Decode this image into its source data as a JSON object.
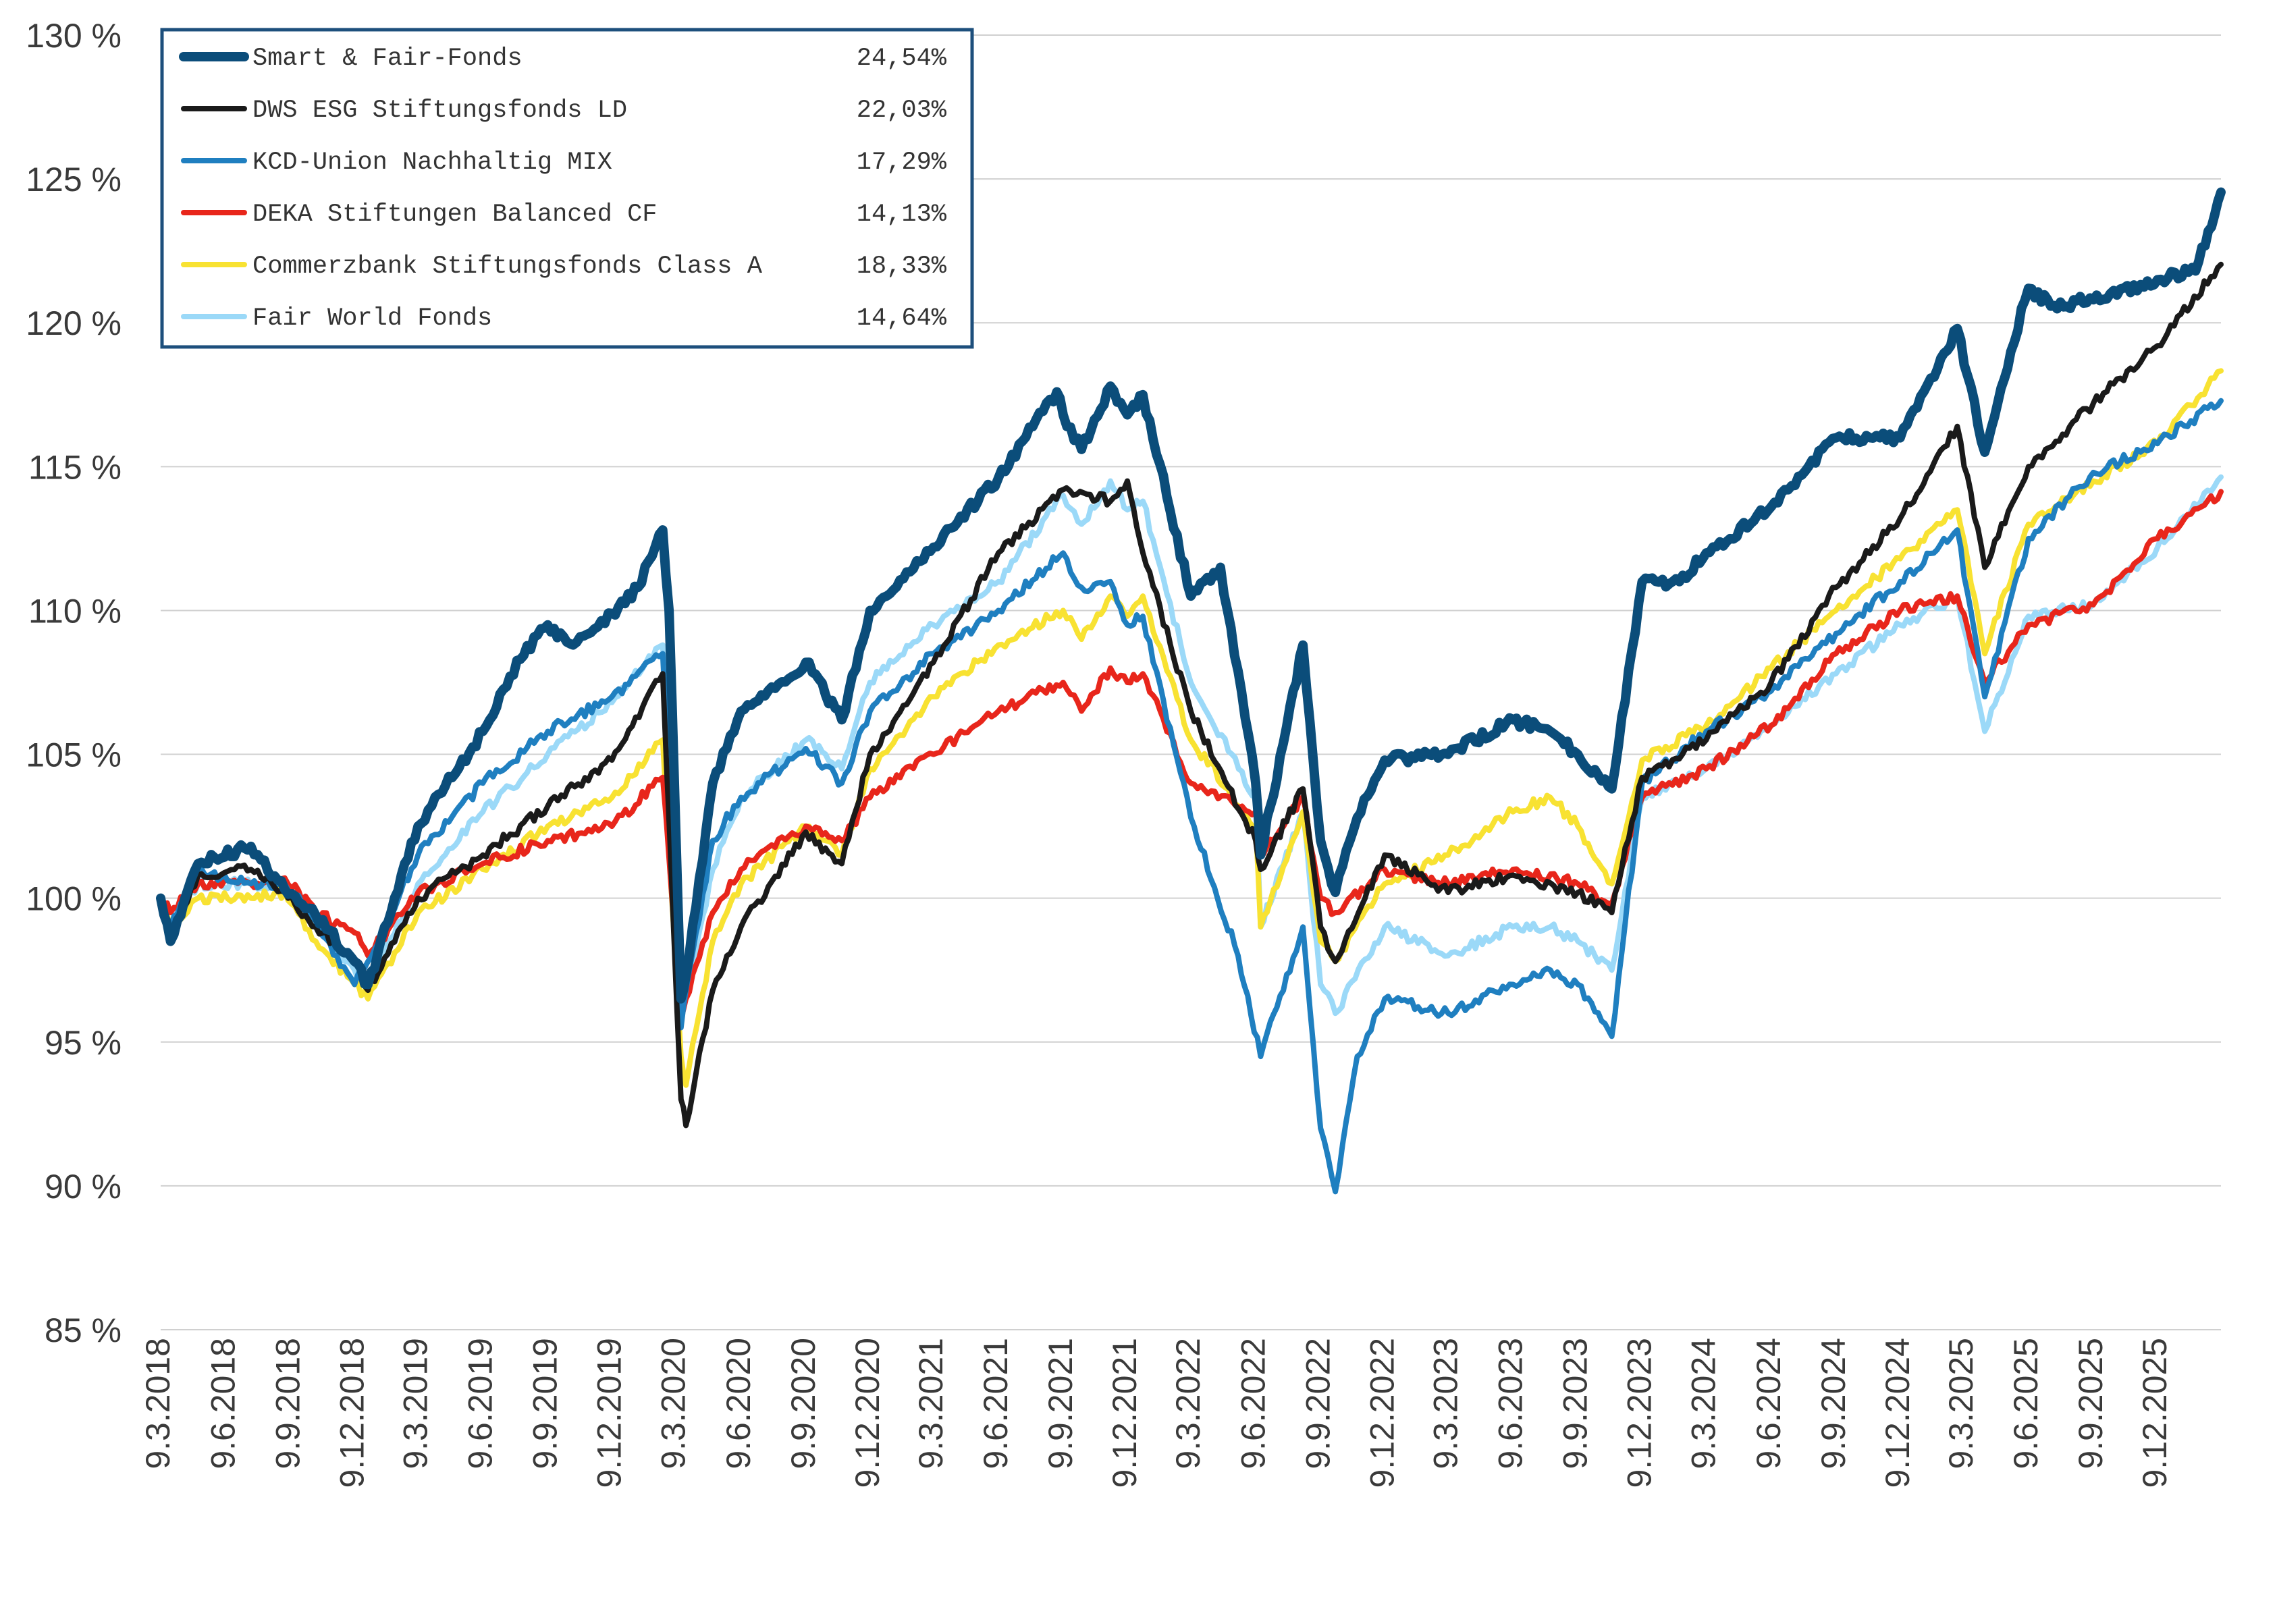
{
  "chart_data": {
    "type": "line",
    "title": "",
    "xlabel": "",
    "ylabel": "",
    "ylim": [
      85,
      130
    ],
    "y_ticks": [
      85,
      90,
      95,
      100,
      105,
      110,
      115,
      120,
      125,
      130
    ],
    "y_tick_labels": [
      "85 %",
      "90 %",
      "95 %",
      "100 %",
      "105 %",
      "110 %",
      "115 %",
      "120 %",
      "125 %",
      "130 %"
    ],
    "x_ticks": [
      "2018-03-09",
      "2018-06-09",
      "2018-09-09",
      "2018-12-09",
      "2019-03-09",
      "2019-06-09",
      "2019-09-09",
      "2019-12-09",
      "2020-03-09",
      "2020-06-09",
      "2020-09-09",
      "2020-12-09",
      "2021-03-09",
      "2021-06-09",
      "2021-09-09",
      "2021-12-09",
      "2022-03-09",
      "2022-06-09",
      "2022-09-09",
      "2022-12-09",
      "2023-03-09",
      "2023-06-09",
      "2023-09-09",
      "2023-12-09",
      "2024-03-09",
      "2024-06-09",
      "2024-09-09",
      "2024-12-09",
      "2025-03-09",
      "2025-06-09",
      "2025-09-09",
      "2025-12-09"
    ],
    "x_tick_labels": [
      "9.3.2018",
      "9.6.2018",
      "9.9.2018",
      "9.12.2018",
      "9.3.2019",
      "9.6.2019",
      "9.9.2019",
      "9.12.2019",
      "9.3.2020",
      "9.6.2020",
      "9.9.2020",
      "9.12.2020",
      "9.3.2021",
      "9.6.2021",
      "9.9.2021",
      "9.12.2021",
      "9.3.2022",
      "9.6.2022",
      "9.9.2022",
      "9.12.2022",
      "9.3.2023",
      "9.6.2023",
      "9.9.2023",
      "9.12.2023",
      "9.3.2024",
      "9.6.2024",
      "9.9.2024",
      "9.12.2024",
      "9.3.2025",
      "9.6.2025",
      "9.9.2025",
      "9.12.2025"
    ],
    "x_range": [
      "2018-03-09",
      "2026-03-09"
    ],
    "grid": true,
    "legend_position": "top-left",
    "series": [
      {
        "name": "Smart & Fair-Fonds",
        "legend_value": "24,54%",
        "color": "#0b4d7a",
        "x": [
          "2018-03-09",
          "2018-03-23",
          "2018-05-01",
          "2018-07-15",
          "2018-09-01",
          "2018-10-15",
          "2018-12-09",
          "2018-12-28",
          "2019-03-09",
          "2019-06-09",
          "2019-08-01",
          "2019-09-09",
          "2019-10-15",
          "2019-12-09",
          "2020-01-15",
          "2020-02-19",
          "2020-02-28",
          "2020-03-16",
          "2020-03-23",
          "2020-04-30",
          "2020-06-09",
          "2020-09-09",
          "2020-10-30",
          "2020-12-09",
          "2021-03-09",
          "2021-06-09",
          "2021-08-31",
          "2021-09-09",
          "2021-10-05",
          "2021-11-15",
          "2021-12-09",
          "2021-12-31",
          "2022-03-09",
          "2022-04-20",
          "2022-06-09",
          "2022-06-16",
          "2022-08-15",
          "2022-09-09",
          "2022-09-30",
          "2022-10-31",
          "2022-12-09",
          "2023-03-09",
          "2023-06-09",
          "2023-08-01",
          "2023-09-09",
          "2023-10-27",
          "2023-12-09",
          "2024-01-31",
          "2024-03-09",
          "2024-06-09",
          "2024-09-09",
          "2024-12-09",
          "2025-01-31",
          "2025-02-28",
          "2025-04-08",
          "2025-05-15",
          "2025-06-09",
          "2025-07-15",
          "2025-09-09",
          "2025-12-09",
          "2026-02-01",
          "2026-03-09"
        ],
        "y": [
          100.0,
          98.5,
          101.2,
          101.8,
          100.3,
          99.4,
          97.8,
          97.0,
          102.5,
          105.8,
          108.3,
          109.5,
          108.8,
          109.9,
          110.8,
          112.8,
          110.0,
          96.5,
          97.3,
          104.0,
          106.5,
          108.2,
          106.2,
          110.0,
          112.2,
          114.6,
          117.6,
          116.8,
          115.6,
          117.8,
          116.8,
          117.5,
          110.5,
          111.5,
          104.0,
          101.5,
          108.8,
          102.0,
          100.2,
          102.8,
          104.8,
          105.0,
          106.2,
          105.8,
          105.0,
          103.8,
          111.0,
          111.0,
          112.0,
          113.6,
          116.0,
          116.0,
          118.4,
          119.8,
          115.5,
          119.0,
          121.2,
          120.6,
          120.8,
          121.5,
          121.8,
          124.54
        ]
      },
      {
        "name": "DWS ESG Stiftungsfonds LD",
        "legend_value": "22,03%",
        "color": "#1a1a1a",
        "x": [
          "2018-03-09",
          "2018-03-23",
          "2018-05-01",
          "2018-07-15",
          "2018-09-01",
          "2018-10-15",
          "2018-12-09",
          "2018-12-28",
          "2019-03-09",
          "2019-06-09",
          "2019-09-09",
          "2019-12-09",
          "2020-02-19",
          "2020-03-16",
          "2020-03-23",
          "2020-04-30",
          "2020-06-09",
          "2020-09-09",
          "2020-10-30",
          "2020-12-09",
          "2021-03-09",
          "2021-06-09",
          "2021-09-09",
          "2021-11-15",
          "2021-12-09",
          "2021-12-31",
          "2022-03-09",
          "2022-06-09",
          "2022-06-16",
          "2022-08-15",
          "2022-09-09",
          "2022-09-30",
          "2022-12-09",
          "2023-03-09",
          "2023-06-09",
          "2023-09-09",
          "2023-10-27",
          "2023-12-09",
          "2024-03-09",
          "2024-06-09",
          "2024-09-09",
          "2024-12-09",
          "2025-02-28",
          "2025-04-08",
          "2025-06-09",
          "2025-09-09",
          "2025-12-09",
          "2026-03-09"
        ],
        "y": [
          100.0,
          98.5,
          100.8,
          101.0,
          100.2,
          99.0,
          97.8,
          96.8,
          100.0,
          101.5,
          103.2,
          104.8,
          107.8,
          93.0,
          92.1,
          96.8,
          99.0,
          102.3,
          101.2,
          105.0,
          108.2,
          112.0,
          114.2,
          113.8,
          114.5,
          112.0,
          106.5,
          102.0,
          101.0,
          103.8,
          99.0,
          97.8,
          101.5,
          100.2,
          100.8,
          100.2,
          99.5,
          104.2,
          105.5,
          107.5,
          110.8,
          113.2,
          116.4,
          111.5,
          115.0,
          117.2,
          119.2,
          122.03
        ]
      },
      {
        "name": "KCD-Union Nachhaltig MIX",
        "legend_value": "17,29%",
        "color": "#1f7fc0",
        "x": [
          "2018-03-09",
          "2018-03-23",
          "2018-05-01",
          "2018-07-15",
          "2018-09-01",
          "2018-10-15",
          "2018-12-09",
          "2018-12-28",
          "2019-03-09",
          "2019-06-09",
          "2019-09-09",
          "2019-12-09",
          "2020-02-19",
          "2020-03-16",
          "2020-03-23",
          "2020-04-30",
          "2020-06-09",
          "2020-09-09",
          "2020-10-30",
          "2020-12-09",
          "2021-03-09",
          "2021-06-09",
          "2021-09-09",
          "2021-10-05",
          "2021-11-15",
          "2021-12-09",
          "2021-12-31",
          "2022-03-09",
          "2022-05-15",
          "2022-06-16",
          "2022-08-15",
          "2022-09-09",
          "2022-09-30",
          "2022-10-31",
          "2022-12-09",
          "2023-03-09",
          "2023-06-09",
          "2023-08-01",
          "2023-09-09",
          "2023-10-27",
          "2023-12-09",
          "2024-03-09",
          "2024-06-09",
          "2024-09-09",
          "2024-12-09",
          "2025-02-28",
          "2025-04-08",
          "2025-06-09",
          "2025-09-09",
          "2025-12-09",
          "2026-03-09"
        ],
        "y": [
          100.0,
          99.0,
          101.0,
          100.5,
          100.5,
          99.2,
          97.0,
          97.8,
          101.5,
          104.0,
          105.8,
          107.0,
          108.5,
          95.5,
          96.8,
          102.0,
          103.5,
          105.2,
          104.0,
          106.5,
          108.5,
          110.0,
          112.0,
          110.8,
          111.0,
          109.5,
          109.8,
          102.8,
          98.0,
          94.5,
          99.0,
          92.0,
          89.8,
          94.5,
          96.5,
          96.0,
          97.0,
          97.5,
          97.0,
          95.2,
          104.0,
          105.8,
          107.2,
          109.2,
          111.0,
          112.8,
          107.0,
          112.5,
          114.8,
          115.8,
          117.29
        ]
      },
      {
        "name": "DEKA Stiftungen Balanced CF",
        "legend_value": "14,13%",
        "color": "#e8261b",
        "x": [
          "2018-03-09",
          "2018-03-23",
          "2018-05-01",
          "2018-07-15",
          "2018-09-01",
          "2018-10-15",
          "2018-12-09",
          "2018-12-28",
          "2019-03-09",
          "2019-06-09",
          "2019-09-09",
          "2019-12-09",
          "2020-02-19",
          "2020-03-16",
          "2020-03-23",
          "2020-04-30",
          "2020-06-09",
          "2020-09-09",
          "2020-10-30",
          "2020-12-09",
          "2021-03-09",
          "2021-06-09",
          "2021-09-09",
          "2021-10-05",
          "2021-11-15",
          "2021-12-09",
          "2021-12-31",
          "2022-03-09",
          "2022-06-09",
          "2022-06-16",
          "2022-08-15",
          "2022-09-09",
          "2022-09-30",
          "2022-12-09",
          "2023-03-09",
          "2023-06-09",
          "2023-09-09",
          "2023-10-27",
          "2023-12-09",
          "2024-03-09",
          "2024-06-09",
          "2024-09-09",
          "2024-12-09",
          "2025-02-28",
          "2025-04-08",
          "2025-06-09",
          "2025-09-09",
          "2025-12-09",
          "2026-03-09"
        ],
        "y": [
          100.0,
          99.5,
          100.5,
          100.5,
          100.7,
          99.5,
          98.8,
          98.0,
          100.2,
          101.2,
          102.0,
          102.5,
          104.2,
          95.8,
          96.5,
          99.5,
          101.0,
          102.5,
          102.0,
          103.5,
          105.0,
          106.5,
          107.5,
          106.5,
          108.0,
          107.5,
          107.8,
          104.0,
          103.0,
          101.5,
          103.5,
          100.0,
          99.5,
          101.0,
          100.5,
          101.0,
          100.5,
          99.8,
          103.5,
          104.5,
          106.0,
          108.5,
          110.0,
          110.5,
          107.5,
          109.5,
          110.2,
          112.5,
          114.13
        ]
      },
      {
        "name": "Commerzbank Stiftungsfonds Class A",
        "legend_value": "18,33%",
        "color": "#f8e232",
        "x": [
          "2018-03-09",
          "2018-03-23",
          "2018-05-01",
          "2018-07-15",
          "2018-09-01",
          "2018-10-15",
          "2018-12-09",
          "2018-12-28",
          "2019-03-09",
          "2019-06-09",
          "2019-09-09",
          "2019-12-09",
          "2020-02-19",
          "2020-03-16",
          "2020-03-23",
          "2020-04-30",
          "2020-06-09",
          "2020-09-09",
          "2020-10-30",
          "2020-12-09",
          "2021-03-09",
          "2021-06-09",
          "2021-09-09",
          "2021-10-05",
          "2021-11-15",
          "2021-12-09",
          "2021-12-31",
          "2022-03-09",
          "2022-06-09",
          "2022-06-16",
          "2022-08-15",
          "2022-09-09",
          "2022-09-30",
          "2022-12-09",
          "2023-03-09",
          "2023-06-09",
          "2023-08-01",
          "2023-09-09",
          "2023-10-27",
          "2023-12-09",
          "2024-03-09",
          "2024-06-09",
          "2024-09-09",
          "2024-12-09",
          "2025-02-28",
          "2025-04-08",
          "2025-06-09",
          "2025-09-09",
          "2025-12-09",
          "2026-03-09"
        ],
        "y": [
          100.0,
          99.0,
          100.0,
          100.0,
          100.2,
          98.5,
          97.0,
          96.5,
          99.5,
          101.0,
          102.5,
          103.5,
          105.5,
          94.5,
          93.5,
          98.5,
          100.5,
          102.5,
          101.5,
          104.5,
          107.0,
          108.8,
          110.0,
          109.0,
          110.5,
          109.8,
          110.5,
          105.5,
          102.5,
          99.0,
          103.0,
          98.5,
          97.8,
          100.5,
          101.5,
          103.0,
          103.5,
          102.5,
          100.5,
          104.8,
          106.0,
          108.0,
          110.0,
          111.8,
          113.5,
          108.5,
          113.0,
          114.5,
          115.8,
          118.33
        ]
      },
      {
        "name": "Fair World Fonds",
        "legend_value": "14,64%",
        "color": "#9bd9f8",
        "x": [
          "2018-03-09",
          "2018-03-23",
          "2018-05-01",
          "2018-07-15",
          "2018-09-01",
          "2018-10-15",
          "2018-12-09",
          "2018-12-28",
          "2019-03-09",
          "2019-06-09",
          "2019-09-09",
          "2019-12-09",
          "2020-02-19",
          "2020-03-16",
          "2020-03-23",
          "2020-04-30",
          "2020-06-09",
          "2020-09-09",
          "2020-10-30",
          "2020-12-09",
          "2021-03-09",
          "2021-06-09",
          "2021-09-09",
          "2021-10-05",
          "2021-11-15",
          "2021-12-09",
          "2021-12-31",
          "2022-03-09",
          "2022-06-09",
          "2022-06-16",
          "2022-08-15",
          "2022-09-09",
          "2022-09-30",
          "2022-12-09",
          "2023-03-09",
          "2023-06-09",
          "2023-08-01",
          "2023-09-09",
          "2023-10-27",
          "2023-12-09",
          "2024-03-09",
          "2024-06-09",
          "2024-09-09",
          "2024-12-09",
          "2025-02-28",
          "2025-04-08",
          "2025-06-09",
          "2025-09-09",
          "2025-12-09",
          "2026-03-09"
        ],
        "y": [
          100.0,
          99.0,
          100.5,
          100.5,
          100.5,
          99.2,
          97.5,
          97.0,
          100.5,
          103.0,
          105.0,
          106.8,
          108.8,
          96.0,
          96.5,
          101.0,
          103.5,
          105.5,
          104.5,
          107.5,
          109.5,
          111.0,
          114.0,
          113.0,
          114.5,
          113.5,
          113.8,
          107.5,
          103.5,
          99.0,
          103.0,
          97.0,
          96.0,
          99.0,
          98.0,
          99.0,
          99.0,
          98.5,
          97.5,
          103.5,
          104.5,
          106.0,
          107.8,
          109.5,
          110.5,
          105.8,
          109.8,
          110.2,
          112.2,
          114.64
        ]
      }
    ]
  }
}
